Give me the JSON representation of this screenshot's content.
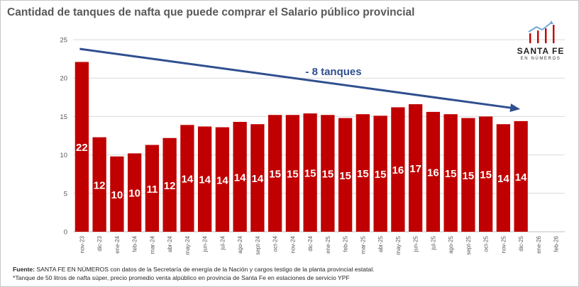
{
  "footer": {
    "source_label": "Fuente:",
    "source_text": " SANTA FE EN NÚMEROS con datos de la Secretaría de energía de la Nación y cargos testigo de la planta provincial estatal.",
    "note": "*Tanque de 50 litros de nafta súper, precio promedio venta alpúblico en provincia de Santa Fe en estaciones de servicio YPF"
  },
  "logo": {
    "name": "SANTA FE",
    "subtitle": "EN NÚMEROS",
    "bar_color": "#c00000",
    "arrow_color": "#6fa8dc"
  },
  "chart_data": {
    "type": "bar",
    "title": "Cantidad de tanques de nafta que puede comprar el Salario público provincial",
    "xlabel": "",
    "ylabel": "",
    "ylim": [
      0,
      25
    ],
    "yticks": [
      0,
      5,
      10,
      15,
      20,
      25
    ],
    "grid": true,
    "bar_color": "#c00000",
    "categories": [
      "nov-23",
      "dic-23",
      "ene-24",
      "feb-24",
      "mar-24",
      "abr-24",
      "may-24",
      "jun-24",
      "jul-24",
      "ago-24",
      "sept-24",
      "oct-24",
      "nov-24",
      "dic-24",
      "ene-25",
      "feb-25",
      "mar-25",
      "abr-25",
      "may-25",
      "jun-25",
      "jul-25",
      "ago-25",
      "sept-25",
      "oct-25",
      "nov-25",
      "dic-25",
      "ene-26",
      "feb-26"
    ],
    "values": [
      22.1,
      12.3,
      9.8,
      10.2,
      11.3,
      12.2,
      13.9,
      13.7,
      13.6,
      14.3,
      14.0,
      15.2,
      15.2,
      15.4,
      15.2,
      14.8,
      15.3,
      15.1,
      16.2,
      16.6,
      15.6,
      15.3,
      14.8,
      15.0,
      14.0,
      14.4,
      null,
      null
    ],
    "data_labels": [
      "22",
      "12",
      "10",
      "10",
      "11",
      "12",
      "14",
      "14",
      "14",
      "14",
      "14",
      "15",
      "15",
      "15",
      "15",
      "15",
      "15",
      "15",
      "16",
      "17",
      "16",
      "15",
      "15",
      "15",
      "14",
      "14",
      "",
      ""
    ],
    "trend": {
      "label": "- 8 tanques",
      "from": {
        "x": "nov-23",
        "y": 23.8
      },
      "to": {
        "x": "dic-25",
        "y": 16.0
      },
      "color": "#2f4f8f"
    }
  }
}
